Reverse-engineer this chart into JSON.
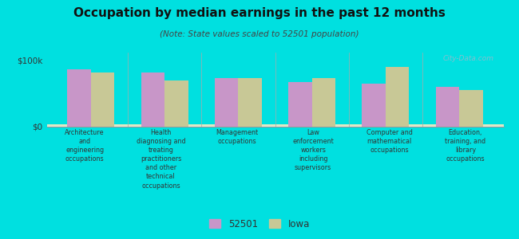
{
  "title": "Occupation by median earnings in the past 12 months",
  "subtitle": "(Note: State values scaled to 52501 population)",
  "categories": [
    "Architecture\nand\nengineering\noccupations",
    "Health\ndiagnosing and\ntreating\npractitioners\nand other\ntechnical\noccupations",
    "Management\noccupations",
    "Law\nenforcement\nworkers\nincluding\nsupervisors",
    "Computer and\nmathematical\noccupations",
    "Education,\ntraining, and\nlibrary\noccupations"
  ],
  "values_52501": [
    87000,
    82000,
    73000,
    68000,
    65000,
    60000
  ],
  "values_iowa": [
    82000,
    70000,
    73000,
    73000,
    90000,
    55000
  ],
  "color_52501": "#c896c8",
  "color_iowa": "#c8c896",
  "background_color": "#00e0e0",
  "plot_bg_top": "#f5f5ea",
  "plot_bg_bottom": "#dde8c0",
  "ylabel_ticks": [
    "$0",
    "$100k"
  ],
  "ytick_values": [
    0,
    100000
  ],
  "ylim": [
    0,
    112000
  ],
  "watermark": "City-Data.com",
  "legend_52501": "52501",
  "legend_iowa": "Iowa",
  "bar_width": 0.32
}
